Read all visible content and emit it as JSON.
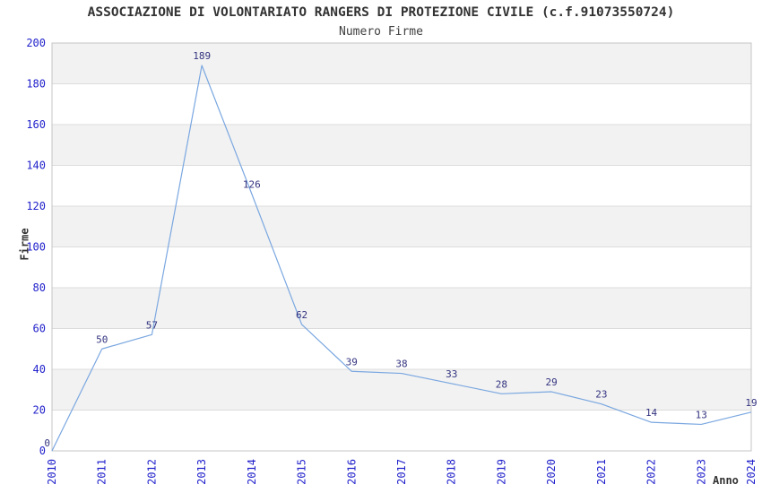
{
  "title": "ASSOCIAZIONE DI VOLONTARIATO RANGERS DI PROTEZIONE CIVILE (c.f.91073550724)",
  "subtitle": "Numero Firme",
  "chart_data": {
    "type": "line",
    "title": "ASSOCIAZIONE DI VOLONTARIATO RANGERS DI PROTEZIONE CIVILE (c.f.91073550724)",
    "subtitle": "Numero Firme",
    "x": [
      2010,
      2011,
      2012,
      2013,
      2014,
      2015,
      2016,
      2017,
      2018,
      2019,
      2020,
      2021,
      2022,
      2023,
      2024
    ],
    "values": [
      0,
      50,
      57,
      189,
      126,
      62,
      39,
      38,
      33,
      28,
      29,
      23,
      14,
      13,
      19
    ],
    "xlabel": "Anno",
    "ylabel": "Firme",
    "ylim": [
      0,
      200
    ],
    "ytick_step": 20,
    "grid": true,
    "band_fill": "alternating-horizontal",
    "legend_position": "none",
    "point_labels": true,
    "colors": {
      "line": "#7aa7e0",
      "band": "#f2f2f2",
      "grid": "#dcdcdc",
      "border": "#c4c4c4",
      "tick_label": "#2222cc",
      "data_label": "#333380",
      "text": "#333333",
      "background": "#ffffff"
    }
  }
}
